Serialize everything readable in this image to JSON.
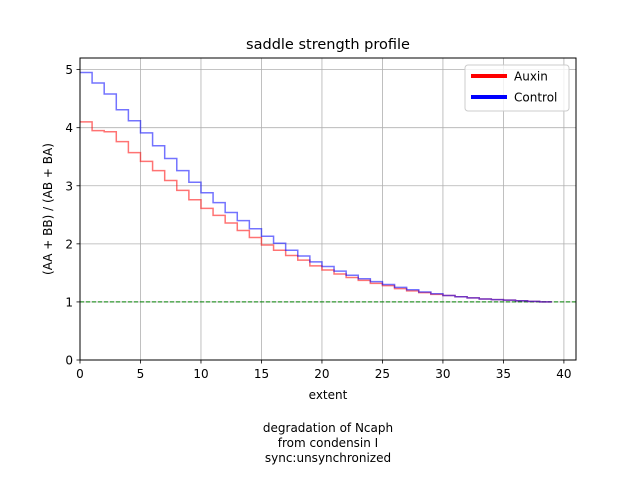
{
  "chart_data": {
    "type": "line",
    "drawstyle": "steps-post",
    "title": "saddle strength profile",
    "xlabel": "extent",
    "ylabel": "(AA + BB) / (AB + BA)",
    "xlim": [
      0,
      41
    ],
    "ylim": [
      0,
      5.2
    ],
    "xticks": [
      0,
      5,
      10,
      15,
      20,
      25,
      30,
      35,
      40
    ],
    "yticks": [
      0,
      1,
      2,
      3,
      4,
      5
    ],
    "grid": true,
    "legend_position": "top-right",
    "reference_line": {
      "y": 1,
      "color": "#008000",
      "style": "dashed"
    },
    "x": [
      0,
      1,
      2,
      3,
      4,
      5,
      6,
      7,
      8,
      9,
      10,
      11,
      12,
      13,
      14,
      15,
      16,
      17,
      18,
      19,
      20,
      21,
      22,
      23,
      24,
      25,
      26,
      27,
      28,
      29,
      30,
      31,
      32,
      33,
      34,
      35,
      36,
      37,
      38,
      39
    ],
    "series": [
      {
        "name": "Auxin",
        "color": "#ff0000",
        "values": [
          4.1,
          3.95,
          3.93,
          3.76,
          3.57,
          3.42,
          3.26,
          3.09,
          2.92,
          2.76,
          2.61,
          2.49,
          2.36,
          2.23,
          2.11,
          1.98,
          1.89,
          1.8,
          1.72,
          1.62,
          1.55,
          1.48,
          1.42,
          1.37,
          1.32,
          1.28,
          1.23,
          1.19,
          1.16,
          1.13,
          1.11,
          1.09,
          1.07,
          1.05,
          1.04,
          1.03,
          1.02,
          1.01,
          1.0,
          1.0
        ]
      },
      {
        "name": "Control",
        "color": "#0000ff",
        "values": [
          4.95,
          4.77,
          4.58,
          4.31,
          4.12,
          3.91,
          3.69,
          3.47,
          3.26,
          3.06,
          2.88,
          2.71,
          2.54,
          2.4,
          2.26,
          2.13,
          2.01,
          1.89,
          1.79,
          1.69,
          1.61,
          1.53,
          1.46,
          1.4,
          1.35,
          1.3,
          1.25,
          1.21,
          1.17,
          1.14,
          1.11,
          1.09,
          1.07,
          1.05,
          1.04,
          1.03,
          1.02,
          1.01,
          1.0,
          1.0
        ]
      }
    ],
    "annotation": [
      "degradation of Ncaph",
      "from condensin I",
      "sync:unsynchronized"
    ]
  }
}
